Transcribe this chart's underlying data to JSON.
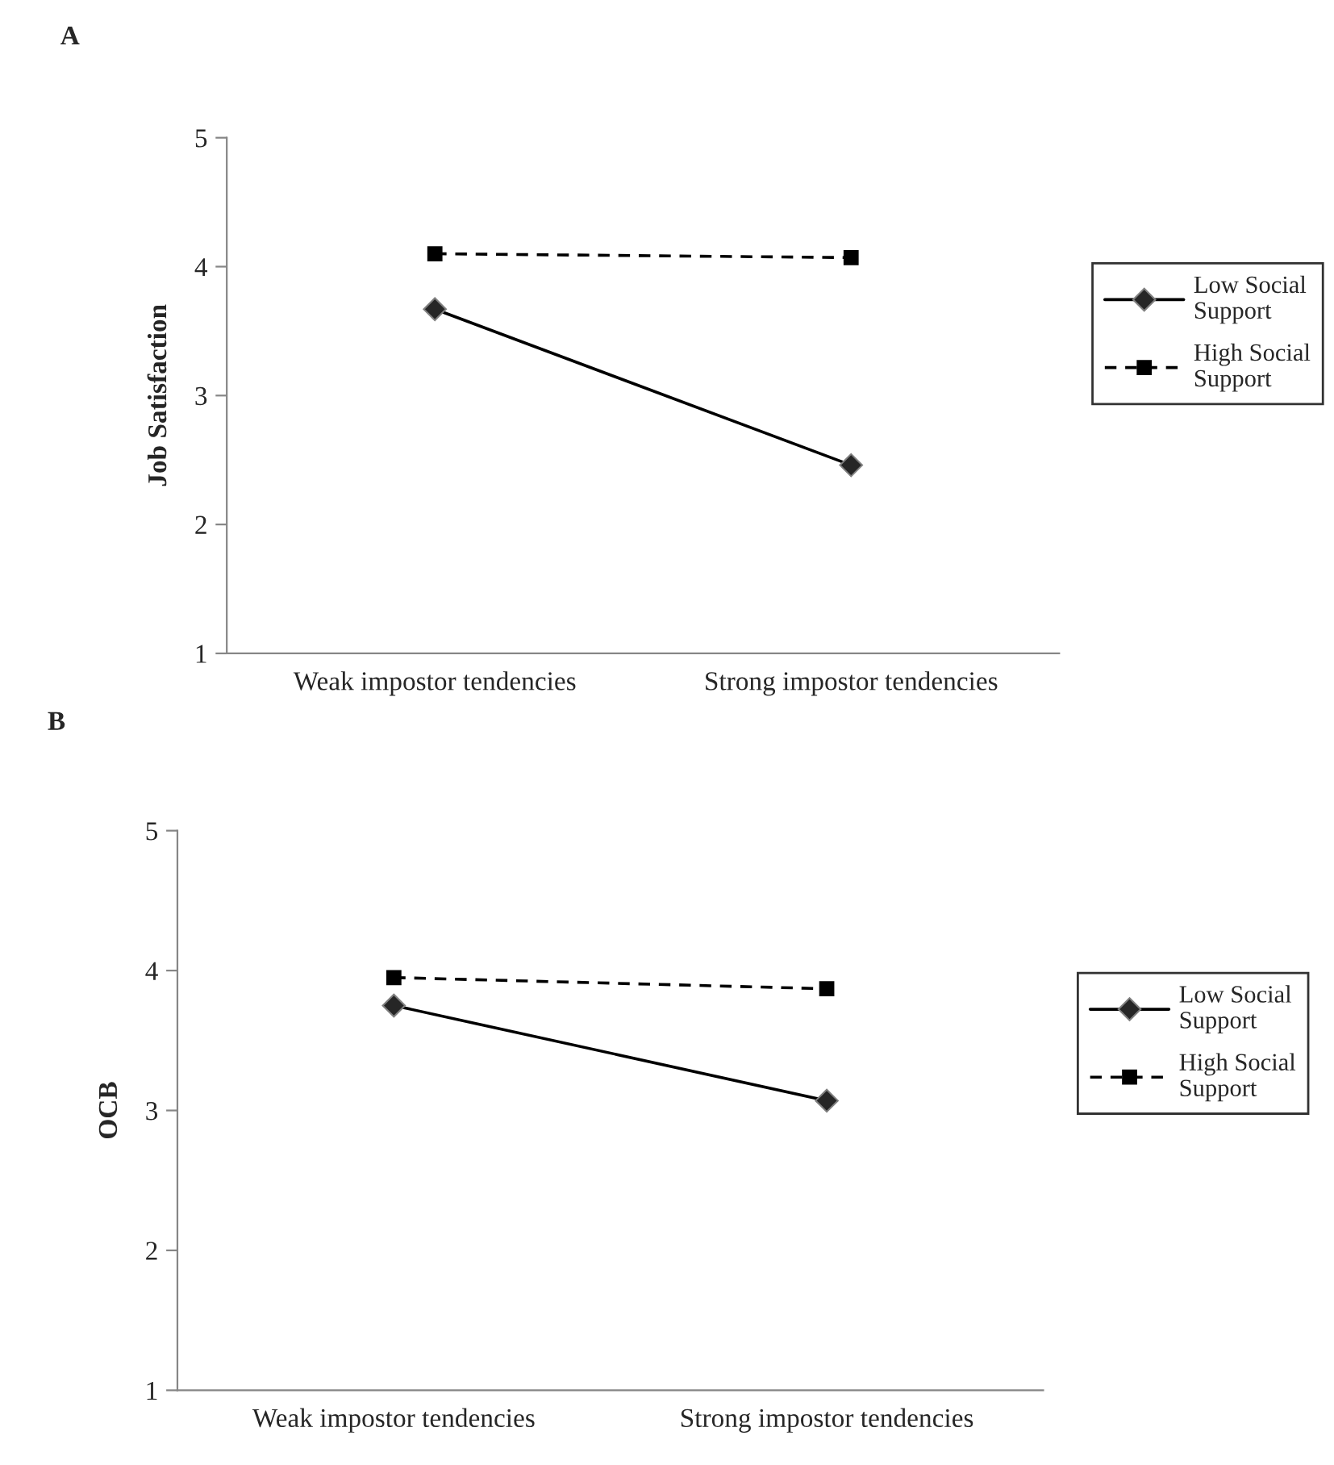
{
  "chart_data": [
    {
      "type": "line",
      "title": "A",
      "ylabel": "Job Satisfaction",
      "categories": [
        "Weak impostor tendencies",
        "Strong impostor tendencies"
      ],
      "ylim": [
        1,
        5
      ],
      "yticks": [
        1,
        2,
        3,
        4,
        5
      ],
      "grid": false,
      "legend": "right",
      "series": [
        {
          "name": "Low Social Support",
          "color": "#000000",
          "values": [
            3.67,
            2.46
          ],
          "marker": "diamond",
          "line_style": "solid"
        },
        {
          "name": "High Social Support",
          "color": "#000000",
          "values": [
            4.1,
            4.07
          ],
          "marker": "square",
          "line_style": "dashed"
        }
      ]
    },
    {
      "type": "line",
      "title": "B",
      "ylabel": "OCB",
      "categories": [
        "Weak impostor tendencies",
        "Strong impostor tendencies"
      ],
      "ylim": [
        1,
        5
      ],
      "yticks": [
        1,
        2,
        3,
        4,
        5
      ],
      "grid": false,
      "legend": "right",
      "series": [
        {
          "name": "Low Social Support",
          "color": "#000000",
          "values": [
            3.75,
            3.07
          ],
          "marker": "diamond",
          "line_style": "solid"
        },
        {
          "name": "High Social Support",
          "color": "#000000",
          "values": [
            3.95,
            3.87
          ],
          "marker": "square",
          "line_style": "dashed"
        }
      ]
    }
  ]
}
